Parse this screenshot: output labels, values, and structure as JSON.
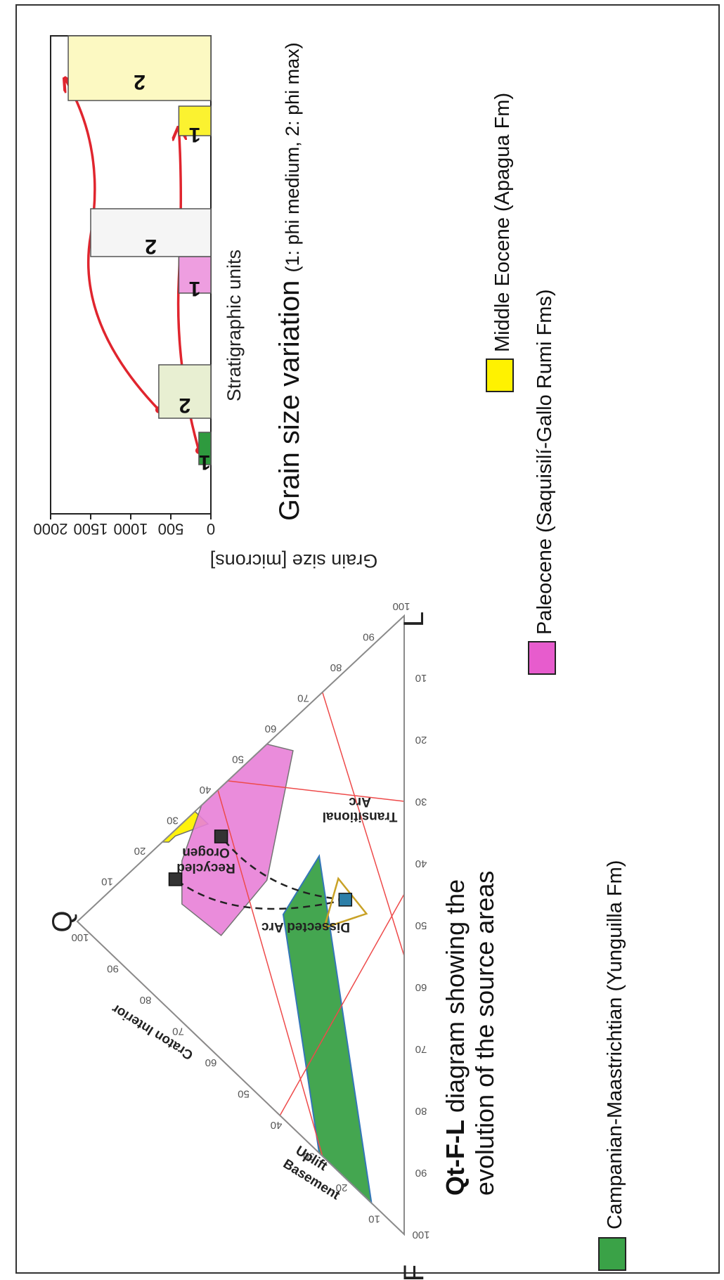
{
  "chart_data": [
    {
      "type": "bar",
      "title": "Grain size variation",
      "subtitle": "(1: phi medium, 2: phi max)",
      "ylabel": "Grain size [microns]",
      "xlabel": "Stratigraphic units",
      "ylim": [
        0,
        2000
      ],
      "yticks": [
        0,
        500,
        1000,
        1500,
        2000
      ],
      "bars": [
        {
          "label": "1",
          "unit": "Campanian-Maastrichtian",
          "value": 150,
          "color": "#2e9a3e"
        },
        {
          "label": "2",
          "unit": "Campanian-Maastrichtian",
          "value": 650,
          "color": "#e8efd2"
        },
        {
          "label": "1",
          "unit": "Paleocene",
          "value": 400,
          "color": "#ee9ee0"
        },
        {
          "label": "2",
          "unit": "Paleocene",
          "value": 1500,
          "color": "#f5f5f5"
        },
        {
          "label": "1",
          "unit": "Middle Eocene",
          "value": 400,
          "color": "#fbf230"
        },
        {
          "label": "2",
          "unit": "Middle Eocene",
          "value": 1780,
          "color": "#fcf9c2"
        }
      ],
      "legend": [
        {
          "name": "Campanian-Maastrichtian (Yunguilla Fm)",
          "color": "#3aa247"
        },
        {
          "name": "Paleocene (Saquisilí-Gallo Rumi Fms)",
          "color": "#e75ccd"
        },
        {
          "name": "Middle Eocene (Apagua Fm)",
          "color": "#fff200"
        }
      ]
    },
    {
      "type": "ternary",
      "title_bold": "Qt-F-L",
      "title_rest": " diagram showing the",
      "title_line2": "evolution of the source areas",
      "vertices": {
        "top": "Q",
        "left": "F",
        "right": "L"
      },
      "ticks": [
        "10",
        "20",
        "30",
        "40",
        "50",
        "60",
        "70",
        "80",
        "90",
        "100"
      ],
      "fields": [
        "Craton Interior",
        "Recycled Orogen",
        "Dissected Arc",
        "Transitional Arc",
        "Basement Uplift"
      ],
      "samples": [
        {
          "unit": "Campanian-Maastrichtian",
          "Q": 18,
          "F": 37,
          "L": 45
        },
        {
          "unit": "Paleocene",
          "Q": 56,
          "F": 8,
          "L": 36
        },
        {
          "unit": "Middle Eocene",
          "Q": 70,
          "F": 8,
          "L": 22
        }
      ]
    }
  ]
}
